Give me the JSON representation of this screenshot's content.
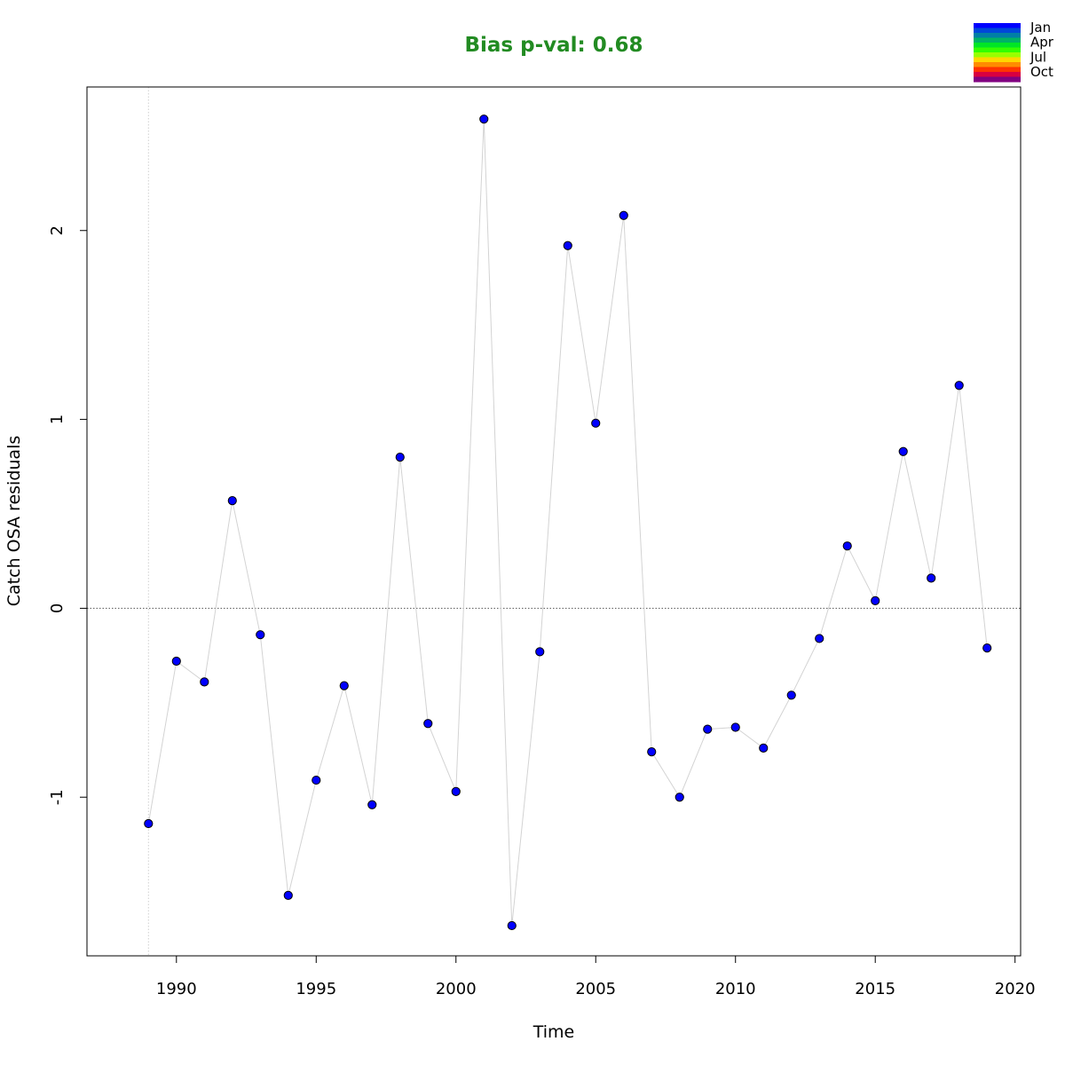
{
  "chart_data": {
    "type": "scatter",
    "title": "Bias p-val: 0.68",
    "title_color": "#228B22",
    "xlabel": "Time",
    "ylabel": "Catch OSA residuals",
    "xlim": [
      1986.8,
      2020.2
    ],
    "ylim": [
      -1.84,
      2.76
    ],
    "x_ticks": [
      1990,
      1995,
      2000,
      2005,
      2010,
      2015,
      2020
    ],
    "y_ticks": [
      -1,
      0,
      1,
      2
    ],
    "reference_line_y": 0,
    "reference_line_x": 1989,
    "point_color": "#0000FF",
    "line_color": "#D3D3D3",
    "grid": false,
    "legend_position": "top-right",
    "legend": {
      "labels": [
        "Jan",
        "Apr",
        "Jul",
        "Oct"
      ],
      "colors": [
        "#0000FF",
        "#0047D9",
        "#007FA6",
        "#00B266",
        "#00E626",
        "#33FF00",
        "#99FF00",
        "#FFD700",
        "#FF8C00",
        "#FF3300",
        "#D90040",
        "#800080"
      ]
    },
    "series": [
      {
        "x": [
          1989,
          1990,
          1991,
          1992,
          1993,
          1994,
          1995,
          1996,
          1997,
          1998,
          1999,
          2000,
          2001,
          2002,
          2003,
          2004,
          2005,
          2006,
          2007,
          2008,
          2009,
          2010,
          2011,
          2012,
          2013,
          2014,
          2015,
          2016,
          2017,
          2018,
          2019
        ],
        "y": [
          -1.14,
          -0.28,
          -0.39,
          0.57,
          -0.14,
          -1.52,
          -0.91,
          -0.41,
          -1.04,
          0.8,
          -0.61,
          -0.97,
          2.59,
          -1.68,
          -0.23,
          1.92,
          0.98,
          2.08,
          -0.76,
          -1.0,
          -0.64,
          -0.63,
          -0.74,
          -0.46,
          -0.16,
          0.33,
          0.04,
          0.83,
          0.16,
          1.18,
          -0.21
        ]
      }
    ]
  }
}
